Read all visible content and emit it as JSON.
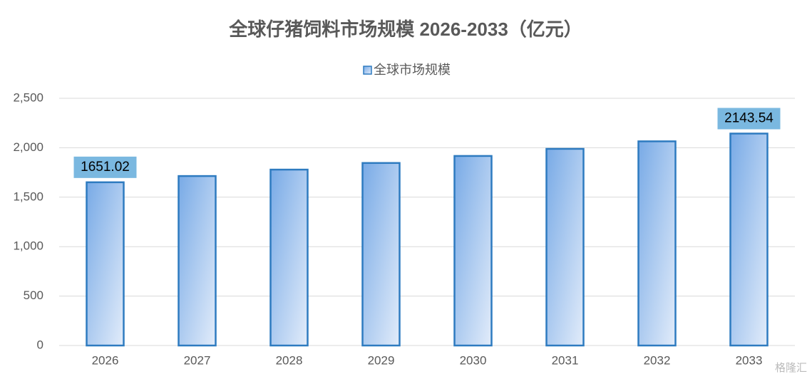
{
  "chart_data": {
    "type": "bar",
    "title": "全球仔猪饲料市场规模 2026-2033（亿元）",
    "categories": [
      "2026",
      "2027",
      "2028",
      "2029",
      "2030",
      "2031",
      "2032",
      "2033"
    ],
    "series": [
      {
        "name": "全球市场规模",
        "color": "#2e7bc0",
        "values": [
          1651.02,
          1714,
          1779,
          1846,
          1917,
          1989,
          2065,
          2143.54
        ],
        "value_labels": [
          "1651.02",
          null,
          null,
          null,
          null,
          null,
          null,
          "2143.54"
        ]
      }
    ],
    "ylim": [
      0,
      2500
    ],
    "yticks": [
      0,
      500,
      {
        "value": 1000,
        "label": "1,000"
      },
      {
        "value": 1500,
        "label": "1,500"
      },
      {
        "value": 2000,
        "label": "2,000"
      },
      {
        "value": 2500,
        "label": "2,500"
      }
    ],
    "grid": true,
    "legend": "top",
    "watermark": "格隆汇"
  }
}
